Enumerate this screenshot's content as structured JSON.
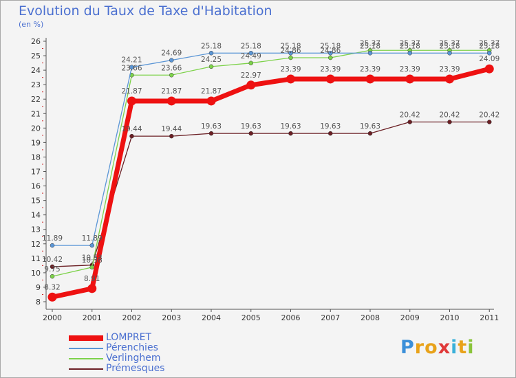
{
  "chart_data": {
    "type": "line",
    "title": "Evolution du Taux de Taxe d'Habitation",
    "ylabel": "(en %)",
    "xlabel": "",
    "x": [
      "2000",
      "2001",
      "2002",
      "2003",
      "2004",
      "2005",
      "2006",
      "2007",
      "2008",
      "2009",
      "2010",
      "2011"
    ],
    "ylim": [
      8,
      26
    ],
    "yticks": [
      "8",
      "9",
      "10",
      "11",
      "12",
      "13",
      "14",
      "15",
      "16",
      "17",
      "18",
      "19",
      "20",
      "21",
      "22",
      "23",
      "24",
      "25",
      "26"
    ],
    "series": [
      {
        "name": "Prémesques",
        "color": "#6b1f24",
        "values": [
          10.42,
          10.53,
          19.44,
          19.44,
          19.63,
          19.63,
          19.63,
          19.63,
          19.63,
          20.42,
          20.42,
          20.42
        ],
        "labels": [
          "10.42",
          "10.53",
          "19.44",
          "19.44",
          "19.63",
          "19.63",
          "19.63",
          "19.63",
          "19.63",
          "20.42",
          "20.42",
          "20.42"
        ]
      },
      {
        "name": "Verlinghem",
        "color": "#7dd24a",
        "values": [
          9.75,
          10.38,
          23.66,
          23.66,
          24.25,
          24.49,
          24.86,
          24.86,
          25.37,
          25.37,
          25.37,
          25.37
        ],
        "labels": [
          "9.75",
          "10.38",
          "23.66",
          "23.66",
          "24.25",
          "24.49",
          "24.86",
          "24.86",
          "25.37",
          "25.37",
          "25.37",
          "25.37"
        ]
      },
      {
        "name": "Pérenchies",
        "color": "#5b96d6",
        "values": [
          11.89,
          11.89,
          24.21,
          24.69,
          25.18,
          25.18,
          25.18,
          25.18,
          25.18,
          25.18,
          25.18,
          25.18
        ],
        "labels": [
          "11.89",
          "11.89",
          "24.21",
          "24.69",
          "25.18",
          "25.18",
          "25.18",
          "25.18",
          "25.18",
          "25.18",
          "25.18",
          "25.18"
        ]
      },
      {
        "name": "LOMPRET",
        "color": "#ee1111",
        "values": [
          8.32,
          8.91,
          21.87,
          21.87,
          21.87,
          22.97,
          23.39,
          23.39,
          23.39,
          23.39,
          23.39,
          24.09
        ],
        "labels": [
          "8.32",
          "8.91",
          "21.87",
          "21.87",
          "21.87",
          "22.97",
          "23.39",
          "23.39",
          "23.39",
          "23.39",
          "23.39",
          "24.09"
        ]
      }
    ],
    "legend_order": [
      "LOMPRET",
      "Pérenchies",
      "Verlinghem",
      "Prémesques"
    ],
    "legend_position": "bottom-left"
  },
  "branding": {
    "letters": [
      "P",
      "r",
      "o",
      "x",
      "i",
      "t",
      "i"
    ],
    "letter_colors": [
      "#3a8fd9",
      "#e8a21a",
      "#e8a21a",
      "#e03a3a",
      "#3ab0d9",
      "#e8a21a",
      "#8ac43a"
    ]
  },
  "colors": {
    "accent": "#4a6fd0",
    "axis": "#555555",
    "grid_tick": "#cc2222"
  }
}
